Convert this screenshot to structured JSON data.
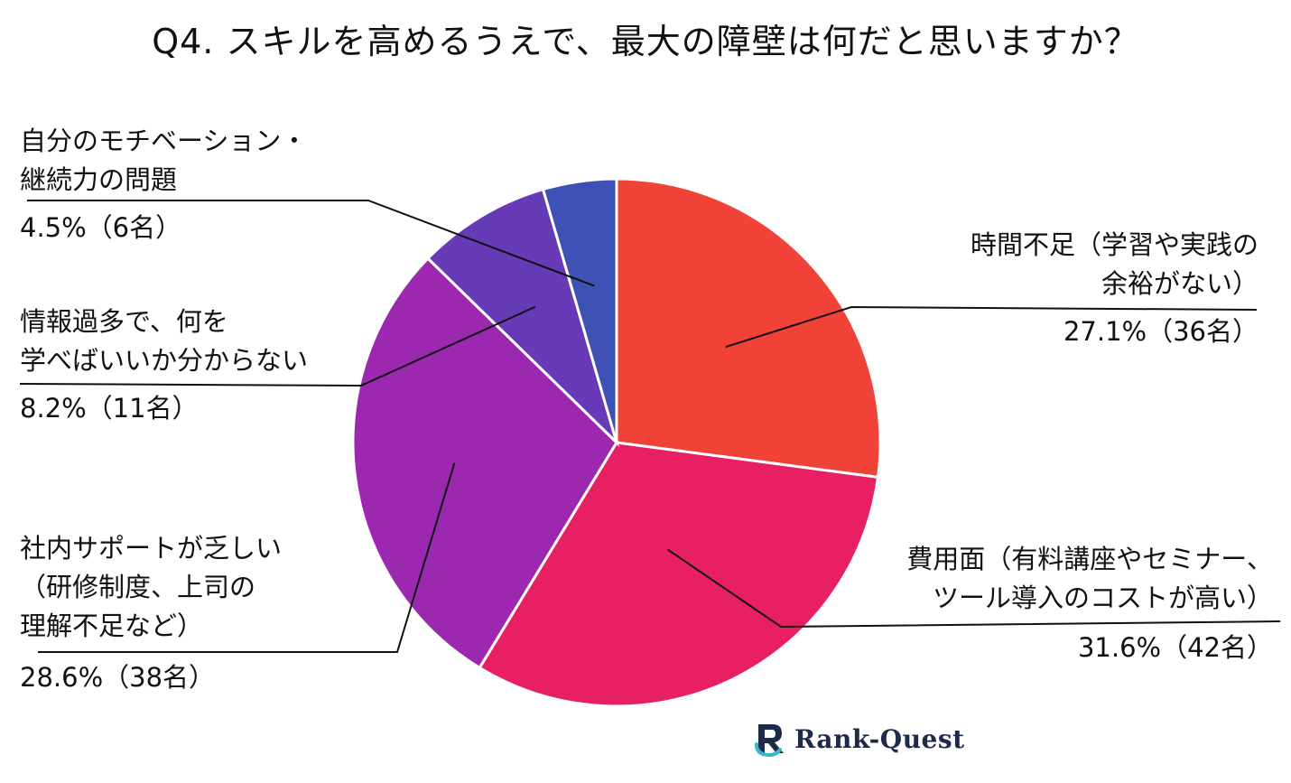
{
  "chart_data": {
    "type": "pie",
    "title": "Q4. スキルを高めるうえで、最大の障壁は何だと思いますか？",
    "slices": [
      {
        "name_lines": [
          "時間不足（学習や実践の",
          "余裕がない）"
        ],
        "percent_label": "27.1%（36名）",
        "value": 27.1,
        "count": 36,
        "color": "#f04236"
      },
      {
        "name_lines": [
          "費用面（有料講座やセミナー、",
          "ツール導入のコストが高い）"
        ],
        "percent_label": "31.6%（42名）",
        "value": 31.6,
        "count": 42,
        "color": "#e91f63"
      },
      {
        "name_lines": [
          "社内サポートが乏しい",
          "（研修制度、上司の",
          "理解不足など）"
        ],
        "percent_label": "28.6%（38名）",
        "value": 28.6,
        "count": 38,
        "color": "#9c28b0"
      },
      {
        "name_lines": [
          "情報過多で、何を",
          "学べばいいか分からない"
        ],
        "percent_label": "8.2%（11名）",
        "value": 8.2,
        "count": 11,
        "color": "#673ab7"
      },
      {
        "name_lines": [
          "自分のモチベーション・",
          "継続力の問題"
        ],
        "percent_label": "4.5%（6名）",
        "value": 4.5,
        "count": 6,
        "color": "#3f51b5"
      }
    ],
    "start_angle": "12 o'clock",
    "direction": "clockwise",
    "legend": "none"
  },
  "brand": {
    "logo_text": "Rank-Quest",
    "color": "#1d2a4a",
    "accent": "#35b8c8"
  }
}
